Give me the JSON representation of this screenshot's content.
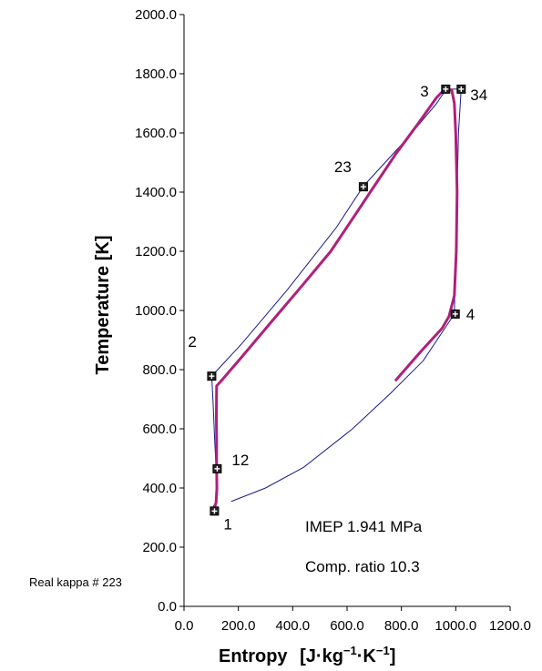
{
  "chart_data": {
    "type": "line",
    "xlabel": "Entropy",
    "xlabel_units": "J·kg⁻¹·K⁻¹",
    "ylabel": "Temperature [K]",
    "xlim": [
      0,
      1200
    ],
    "ylim": [
      0,
      2000
    ],
    "xticks": [
      0,
      200,
      400,
      600,
      800,
      1000,
      1200
    ],
    "xtick_labels": [
      "0.0",
      "200.0",
      "400.0",
      "600.0",
      "800.0",
      "1000.0",
      "1200.0"
    ],
    "yticks": [
      0,
      200,
      400,
      600,
      800,
      1000,
      1200,
      1400,
      1600,
      1800,
      2000
    ],
    "ytick_labels": [
      "0.0",
      "200.0",
      "400.0",
      "600.0",
      "800.0",
      "1000.0",
      "1200.0",
      "1400.0",
      "1600.0",
      "1800.0",
      "2000.0"
    ],
    "grid": false,
    "series": [
      {
        "color": "#1a1a8c",
        "points": [
          [
            112,
            325
          ],
          [
            118,
            340
          ],
          [
            120,
            400
          ],
          [
            118,
            465
          ],
          [
            113,
            560
          ],
          [
            107,
            690
          ],
          [
            102,
            778
          ],
          [
            210,
            885
          ],
          [
            380,
            1070
          ],
          [
            560,
            1280
          ],
          [
            660,
            1420
          ],
          [
            720,
            1480
          ],
          [
            820,
            1580
          ],
          [
            930,
            1700
          ],
          [
            965,
            1748
          ],
          [
            1020,
            1748
          ],
          [
            1010,
            1600
          ],
          [
            1005,
            1400
          ],
          [
            1000,
            1200
          ],
          [
            995,
            988
          ],
          [
            880,
            830
          ],
          [
            760,
            720
          ],
          [
            620,
            600
          ],
          [
            440,
            470
          ],
          [
            300,
            400
          ],
          [
            175,
            355
          ]
        ]
      },
      {
        "color": "#b0207a",
        "points": [
          [
            108,
            330
          ],
          [
            118,
            350
          ],
          [
            121,
            400
          ],
          [
            120,
            470
          ],
          [
            120,
            560
          ],
          [
            119,
            640
          ],
          [
            120,
            745
          ],
          [
            135,
            760
          ],
          [
            210,
            840
          ],
          [
            320,
            960
          ],
          [
            440,
            1090
          ],
          [
            540,
            1200
          ],
          [
            620,
            1310
          ],
          [
            700,
            1420
          ],
          [
            780,
            1530
          ],
          [
            860,
            1630
          ],
          [
            930,
            1720
          ],
          [
            960,
            1748
          ],
          [
            985,
            1745
          ],
          [
            995,
            1700
          ],
          [
            1000,
            1600
          ],
          [
            1005,
            1400
          ],
          [
            1002,
            1200
          ],
          [
            995,
            1050
          ],
          [
            975,
            980
          ],
          [
            950,
            940
          ],
          [
            870,
            860
          ],
          [
            780,
            765
          ]
        ]
      }
    ],
    "points": [
      {
        "label": "1",
        "x": 112,
        "y": 322
      },
      {
        "label": "12",
        "x": 122,
        "y": 465
      },
      {
        "label": "2",
        "x": 102,
        "y": 778
      },
      {
        "label": "23",
        "x": 660,
        "y": 1418
      },
      {
        "label": "3",
        "x": 963,
        "y": 1748
      },
      {
        "label": "34",
        "x": 1020,
        "y": 1748
      },
      {
        "label": "4",
        "x": 998,
        "y": 988
      }
    ],
    "annotations": [
      "IMEP 1.941 MPa",
      "Comp. ratio 10.3"
    ],
    "note": "Real kappa # 223"
  }
}
